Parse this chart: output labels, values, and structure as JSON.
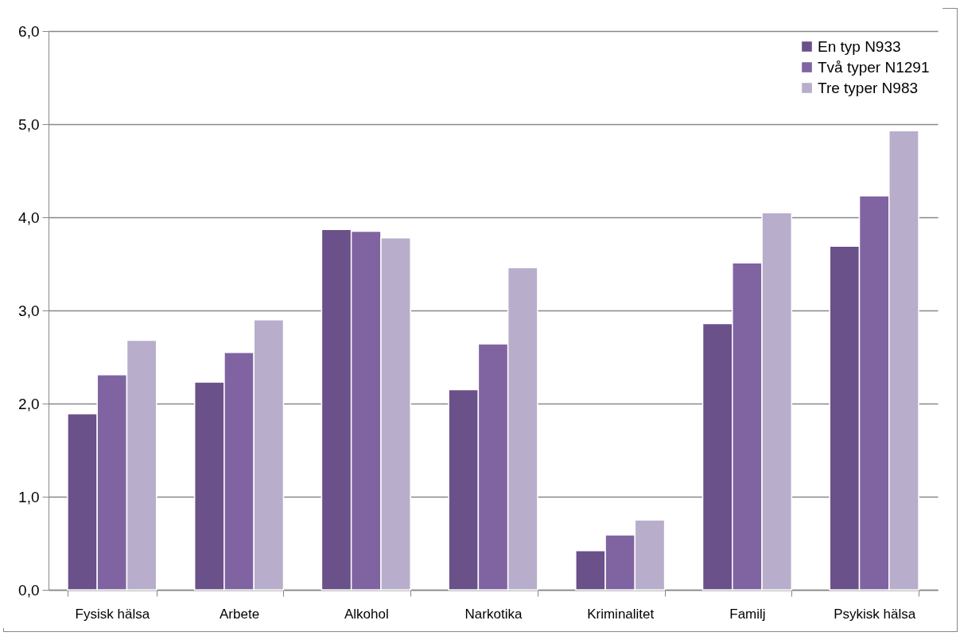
{
  "chart_data": {
    "type": "bar",
    "categories": [
      "Fysisk hälsa",
      "Arbete",
      "Alkohol",
      "Narkotika",
      "Kriminalitet",
      "Familj",
      "Psykisk hälsa"
    ],
    "series": [
      {
        "name": "En typ N933",
        "color": "#6a5189",
        "values": [
          1.89,
          2.23,
          3.87,
          2.15,
          0.42,
          2.86,
          3.69
        ]
      },
      {
        "name": "Två typer N1291",
        "color": "#8064a2",
        "values": [
          2.31,
          2.55,
          3.85,
          2.64,
          0.59,
          3.51,
          4.23
        ]
      },
      {
        "name": "Tre typer N983",
        "color": "#b8aecb",
        "values": [
          2.68,
          2.9,
          3.78,
          3.46,
          0.75,
          4.05,
          4.93
        ]
      }
    ],
    "ylim": [
      0,
      6
    ],
    "yticks": [
      {
        "value": 0,
        "label": "0,0"
      },
      {
        "value": 1,
        "label": "1,0"
      },
      {
        "value": 2,
        "label": "2,0"
      },
      {
        "value": 3,
        "label": "3,0"
      },
      {
        "value": 4,
        "label": "4,0"
      },
      {
        "value": 5,
        "label": "5,0"
      },
      {
        "value": 6,
        "label": "6,0"
      }
    ],
    "grid": "y",
    "legend": "top right"
  }
}
